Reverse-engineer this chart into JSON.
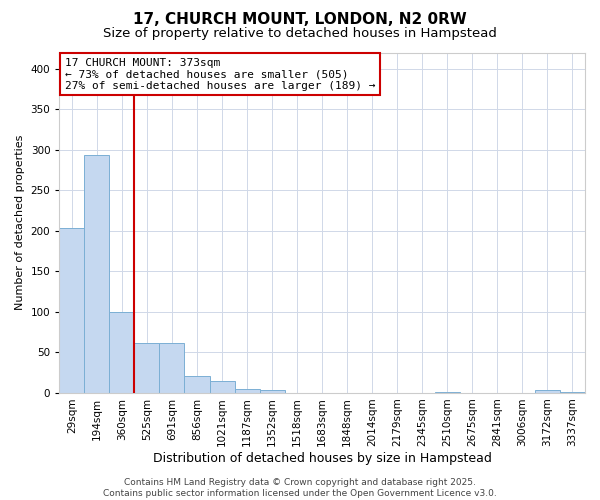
{
  "title": "17, CHURCH MOUNT, LONDON, N2 0RW",
  "subtitle": "Size of property relative to detached houses in Hampstead",
  "xlabel": "Distribution of detached houses by size in Hampstead",
  "ylabel": "Number of detached properties",
  "categories": [
    "29sqm",
    "194sqm",
    "360sqm",
    "525sqm",
    "691sqm",
    "856sqm",
    "1021sqm",
    "1187sqm",
    "1352sqm",
    "1518sqm",
    "1683sqm",
    "1848sqm",
    "2014sqm",
    "2179sqm",
    "2345sqm",
    "2510sqm",
    "2675sqm",
    "2841sqm",
    "3006sqm",
    "3172sqm",
    "3337sqm"
  ],
  "values": [
    204,
    293,
    100,
    62,
    62,
    21,
    14,
    5,
    4,
    0,
    0,
    0,
    0,
    0,
    0,
    1,
    0,
    0,
    0,
    3,
    1
  ],
  "bar_color": "#c5d8f0",
  "bar_edge_color": "#7bafd4",
  "vline_color": "#cc0000",
  "annotation_text": "17 CHURCH MOUNT: 373sqm\n← 73% of detached houses are smaller (505)\n27% of semi-detached houses are larger (189) →",
  "annotation_box_facecolor": "#ffffff",
  "annotation_box_edgecolor": "#cc0000",
  "ylim": [
    0,
    420
  ],
  "yticks": [
    0,
    50,
    100,
    150,
    200,
    250,
    300,
    350,
    400
  ],
  "footer": "Contains HM Land Registry data © Crown copyright and database right 2025.\nContains public sector information licensed under the Open Government Licence v3.0.",
  "title_fontsize": 11,
  "subtitle_fontsize": 9.5,
  "xlabel_fontsize": 9,
  "ylabel_fontsize": 8,
  "tick_fontsize": 7.5,
  "annot_fontsize": 8,
  "footer_fontsize": 6.5,
  "plot_bg_color": "#ffffff",
  "fig_bg_color": "#ffffff",
  "grid_color": "#d0d8e8"
}
